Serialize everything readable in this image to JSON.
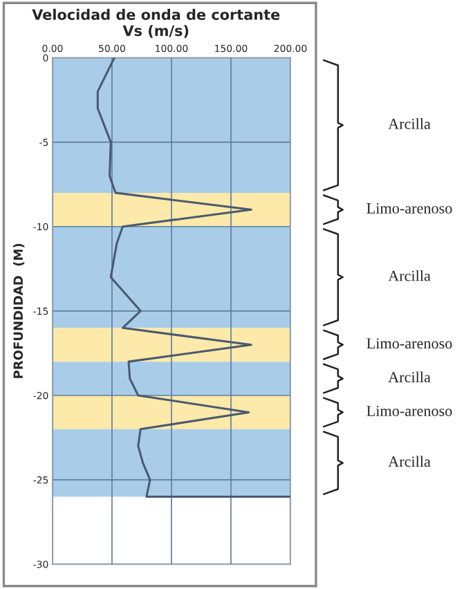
{
  "chart_data": {
    "type": "line",
    "title": "Velocidad de onda de cortante\nVs (m/s)",
    "ylabel": "PROFUNDIDAD  (M)",
    "xlim": [
      0,
      200
    ],
    "xticks": [
      {
        "value": 0,
        "label": "0.00"
      },
      {
        "value": 50,
        "label": "50.00"
      },
      {
        "value": 100,
        "label": "100.00"
      },
      {
        "value": 150,
        "label": "150.00"
      },
      {
        "value": 200,
        "label": "200.00"
      }
    ],
    "ylim": [
      -30,
      0
    ],
    "yticks": [
      -30,
      -25,
      -20,
      -15,
      -10,
      -5,
      0
    ],
    "grid": true,
    "legend": false,
    "series": [
      {
        "color": "#4a5a6e",
        "x": [
          52,
          38,
          38,
          49,
          48,
          53,
          167,
          59,
          54,
          49,
          74,
          59,
          167,
          64,
          65,
          72,
          165,
          74,
          72,
          76,
          82,
          79,
          200
        ],
        "values": [
          0,
          -2,
          -3,
          -5,
          -7,
          -8,
          -9,
          -10,
          -11,
          -13,
          -15,
          -16,
          -17,
          -18,
          -19,
          -20,
          -21,
          -22,
          -23,
          -24,
          -25,
          -26,
          -26
        ]
      }
    ],
    "bands": [
      {
        "axis": "y",
        "from": 0,
        "to": -8,
        "color": "#a9cde9"
      },
      {
        "axis": "y",
        "from": -8,
        "to": -10,
        "color": "#fde9a9"
      },
      {
        "axis": "y",
        "from": -10,
        "to": -16,
        "color": "#a9cde9"
      },
      {
        "axis": "y",
        "from": -16,
        "to": -18,
        "color": "#fde9a9"
      },
      {
        "axis": "y",
        "from": -18,
        "to": -20,
        "color": "#a9cde9"
      },
      {
        "axis": "y",
        "from": -20,
        "to": -22,
        "color": "#fde9a9"
      },
      {
        "axis": "y",
        "from": -22,
        "to": -26,
        "color": "#a9cde9"
      }
    ],
    "annotations": [
      "Arcilla",
      "Limo-arenoso",
      "Arcilla",
      "Limo-arenoso",
      "Arcilla",
      "Limo-arenoso",
      "Arcilla"
    ]
  }
}
